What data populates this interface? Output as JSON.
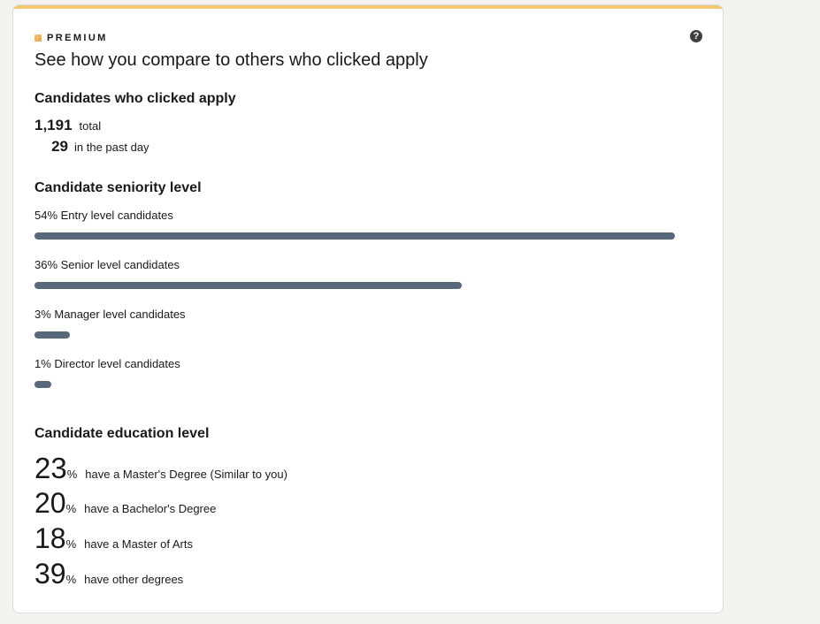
{
  "card": {
    "premium_label": "PREMIUM",
    "help_icon": "question-circle-icon",
    "title": "See how you compare to others who clicked apply",
    "accent_color": "#f5c775"
  },
  "applicants": {
    "heading": "Candidates who clicked apply",
    "total_value": "1,191",
    "total_label": "total",
    "past_day_value": "29",
    "past_day_label": "in the past day"
  },
  "seniority": {
    "heading": "Candidate seniority level",
    "bar_color": "#56687a",
    "items": [
      {
        "label": "54% Entry level candidates",
        "percent": 54
      },
      {
        "label": "36% Senior level candidates",
        "percent": 36
      },
      {
        "label": "3% Manager level candidates",
        "percent": 3
      },
      {
        "label": "1% Director level candidates",
        "percent": 1
      }
    ]
  },
  "education": {
    "heading": "Candidate education level",
    "items": [
      {
        "value": "23",
        "unit": "%",
        "label": "have a Master's Degree (Similar to you)"
      },
      {
        "value": "20",
        "unit": "%",
        "label": "have a Bachelor's Degree"
      },
      {
        "value": "18",
        "unit": "%",
        "label": "have a Master of Arts"
      },
      {
        "value": "39",
        "unit": "%",
        "label": "have other degrees"
      }
    ]
  }
}
